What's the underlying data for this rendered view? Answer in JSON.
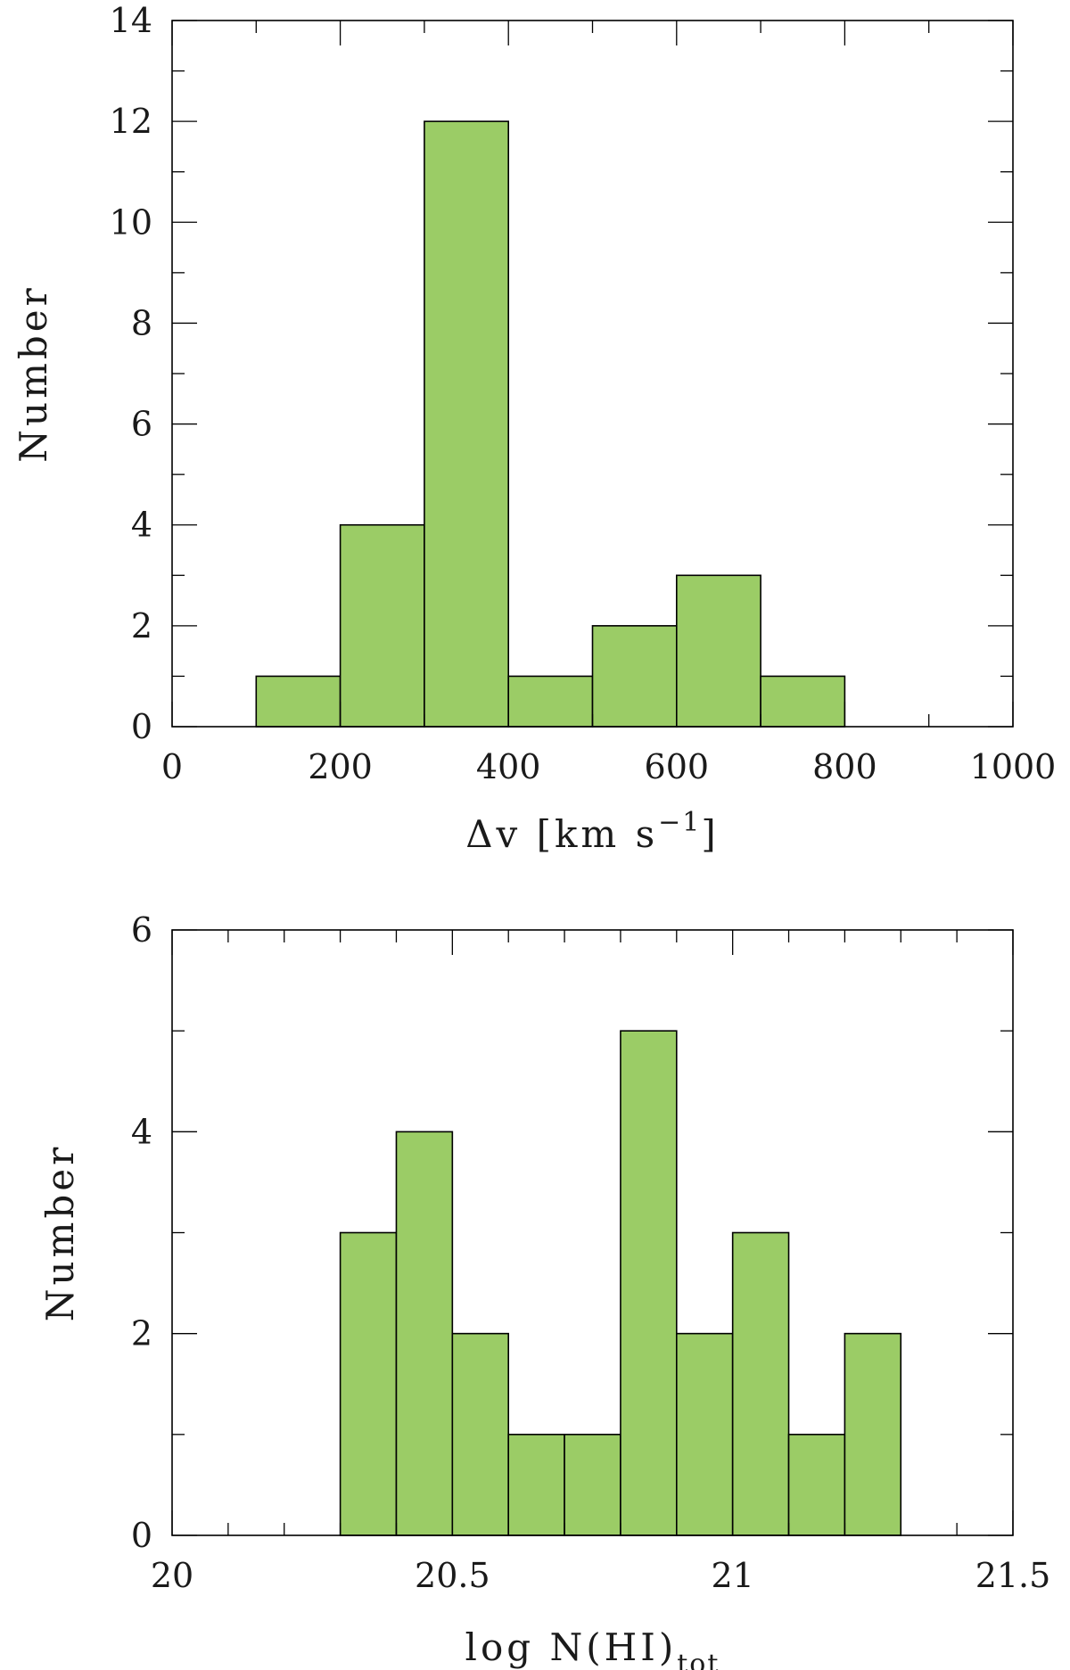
{
  "chart_data": [
    {
      "type": "bar",
      "subtype": "histogram",
      "bin_edges": [
        100,
        200,
        300,
        400,
        500,
        600,
        700,
        800
      ],
      "values": [
        1,
        4,
        12,
        1,
        2,
        3,
        1
      ],
      "title": "",
      "xlabel": "Δv [km s",
      "xlabel_sup": "−1",
      "xlabel_close": "]",
      "ylabel": "Number",
      "xlim": [
        0,
        1000
      ],
      "ylim": [
        0,
        14
      ],
      "x_ticks": [
        0,
        200,
        400,
        600,
        800,
        1000
      ],
      "x_tick_labels": [
        "0",
        "200",
        "400",
        "600",
        "800",
        "1000"
      ],
      "x_minor_step": 100,
      "y_ticks": [
        0,
        2,
        4,
        6,
        8,
        10,
        12,
        14
      ],
      "y_tick_labels": [
        "0",
        "2",
        "4",
        "6",
        "8",
        "10",
        "12",
        "14"
      ],
      "y_minor_step": 1,
      "grid": false,
      "legend": "none",
      "fill_color": "#9bcc66"
    },
    {
      "type": "bar",
      "subtype": "histogram",
      "bin_edges": [
        20.3,
        20.4,
        20.5,
        20.6,
        20.7,
        20.8,
        20.9,
        21.0,
        21.1,
        21.2,
        21.3
      ],
      "values": [
        3,
        4,
        2,
        1,
        1,
        5,
        2,
        3,
        1,
        2
      ],
      "title": "",
      "xlabel": "log N(HI)",
      "xlabel_sub": "tot",
      "ylabel": "Number",
      "xlim": [
        20,
        21.5
      ],
      "ylim": [
        0,
        6
      ],
      "x_ticks": [
        20,
        20.5,
        21,
        21.5
      ],
      "x_tick_labels": [
        "20",
        "20.5",
        "21",
        "21.5"
      ],
      "x_minor_step": 0.1,
      "y_ticks": [
        0,
        2,
        4,
        6
      ],
      "y_tick_labels": [
        "0",
        "2",
        "4",
        "6"
      ],
      "y_minor_step": 1,
      "grid": false,
      "legend": "none",
      "fill_color": "#9bcc66"
    }
  ]
}
